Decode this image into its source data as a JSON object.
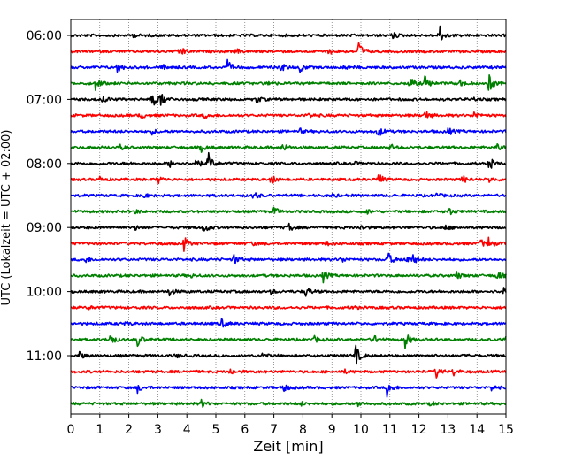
{
  "chart_data": {
    "type": "line",
    "title": "",
    "xlabel": "Zeit  [min]",
    "ylabel": "UTC (Lokalzeit = UTC + 02:00)",
    "xlim": [
      0,
      15
    ],
    "x_ticks": [
      0,
      1,
      2,
      3,
      4,
      5,
      6,
      7,
      8,
      9,
      10,
      11,
      12,
      13,
      14,
      15
    ],
    "y_tick_labels": [
      "06:00",
      "07:00",
      "08:00",
      "09:00",
      "10:00",
      "11:00"
    ],
    "x_grid": "dotted vertical lines at each minute",
    "trace_colors": [
      "#000000",
      "#ff0000",
      "#0000ff",
      "#008000"
    ],
    "series": [
      {
        "start": "06:00",
        "color": "#000000",
        "events": [
          {
            "t": 12.7,
            "amp": 1.4
          },
          {
            "t": 11.1,
            "amp": 0.4
          },
          {
            "t": 2.1,
            "amp": 0.3
          }
        ]
      },
      {
        "start": "06:15",
        "color": "#ff0000",
        "events": [
          {
            "t": 3.75,
            "amp": 0.9
          },
          {
            "t": 9.9,
            "amp": 1.6
          },
          {
            "t": 5.7,
            "amp": 0.3
          },
          {
            "t": 8.9,
            "amp": 0.4
          }
        ]
      },
      {
        "start": "06:30",
        "color": "#0000ff",
        "events": [
          {
            "t": 1.6,
            "amp": 0.7
          },
          {
            "t": 5.4,
            "amp": 0.9
          },
          {
            "t": 7.2,
            "amp": 0.8
          },
          {
            "t": 7.9,
            "amp": 0.6
          },
          {
            "t": 9.4,
            "amp": 0.3
          },
          {
            "t": 3.2,
            "amp": 0.4
          }
        ]
      },
      {
        "start": "06:45",
        "color": "#008000",
        "events": [
          {
            "t": 0.85,
            "amp": 0.9
          },
          {
            "t": 11.7,
            "amp": 0.9
          },
          {
            "t": 12.2,
            "amp": 1.1
          },
          {
            "t": 14.4,
            "amp": 1.3
          },
          {
            "t": 6.8,
            "amp": 0.3
          },
          {
            "t": 13.4,
            "amp": 0.5
          }
        ]
      },
      {
        "start": "07:00",
        "color": "#000000",
        "events": [
          {
            "t": 1.1,
            "amp": 0.6
          },
          {
            "t": 2.8,
            "amp": 1.2
          },
          {
            "t": 3.1,
            "amp": 1.3
          },
          {
            "t": 6.4,
            "amp": 0.5
          },
          {
            "t": 13.8,
            "amp": 0.3
          }
        ]
      },
      {
        "start": "07:15",
        "color": "#ff0000",
        "events": [
          {
            "t": 2.4,
            "amp": 0.4
          },
          {
            "t": 12.2,
            "amp": 0.7
          },
          {
            "t": 13.9,
            "amp": 0.5
          },
          {
            "t": 4.6,
            "amp": 0.3
          },
          {
            "t": 8.2,
            "amp": 0.3
          }
        ]
      },
      {
        "start": "07:30",
        "color": "#0000ff",
        "events": [
          {
            "t": 10.6,
            "amp": 0.8
          },
          {
            "t": 13.0,
            "amp": 0.5
          },
          {
            "t": 2.8,
            "amp": 0.3
          },
          {
            "t": 7.9,
            "amp": 0.3
          }
        ]
      },
      {
        "start": "07:45",
        "color": "#008000",
        "events": [
          {
            "t": 4.5,
            "amp": 0.5
          },
          {
            "t": 7.3,
            "amp": 0.6
          },
          {
            "t": 11.0,
            "amp": 0.5
          },
          {
            "t": 14.7,
            "amp": 0.4
          },
          {
            "t": 1.7,
            "amp": 0.3
          }
        ]
      },
      {
        "start": "08:00",
        "color": "#000000",
        "events": [
          {
            "t": 4.3,
            "amp": 0.8
          },
          {
            "t": 4.75,
            "amp": 1.3
          },
          {
            "t": 14.4,
            "amp": 1.0
          },
          {
            "t": 3.4,
            "amp": 0.5
          },
          {
            "t": 9.7,
            "amp": 0.3
          }
        ]
      },
      {
        "start": "08:15",
        "color": "#ff0000",
        "events": [
          {
            "t": 3.0,
            "amp": 0.5
          },
          {
            "t": 6.9,
            "amp": 0.7
          },
          {
            "t": 10.6,
            "amp": 0.9
          },
          {
            "t": 13.5,
            "amp": 0.6
          },
          {
            "t": 1.0,
            "amp": 0.3
          },
          {
            "t": 14.4,
            "amp": 0.4
          }
        ]
      },
      {
        "start": "08:30",
        "color": "#0000ff",
        "events": [
          {
            "t": 6.3,
            "amp": 0.6
          },
          {
            "t": 9.0,
            "amp": 0.3
          },
          {
            "t": 12.6,
            "amp": 0.3
          },
          {
            "t": 2.5,
            "amp": 0.3
          }
        ]
      },
      {
        "start": "08:45",
        "color": "#008000",
        "events": [
          {
            "t": 7.0,
            "amp": 0.6
          },
          {
            "t": 13.0,
            "amp": 0.7
          },
          {
            "t": 2.2,
            "amp": 0.3
          },
          {
            "t": 10.2,
            "amp": 0.3
          }
        ]
      },
      {
        "start": "09:00",
        "color": "#000000",
        "events": [
          {
            "t": 4.6,
            "amp": 0.7
          },
          {
            "t": 7.5,
            "amp": 0.6
          },
          {
            "t": 10.0,
            "amp": 0.4
          },
          {
            "t": 2.2,
            "amp": 0.3
          },
          {
            "t": 12.9,
            "amp": 0.4
          }
        ]
      },
      {
        "start": "09:15",
        "color": "#ff0000",
        "events": [
          {
            "t": 3.9,
            "amp": 1.0
          },
          {
            "t": 14.4,
            "amp": 0.8
          },
          {
            "t": 14.1,
            "amp": 0.6
          },
          {
            "t": 8.8,
            "amp": 0.3
          },
          {
            "t": 6.2,
            "amp": 0.3
          }
        ]
      },
      {
        "start": "09:30",
        "color": "#0000ff",
        "events": [
          {
            "t": 0.5,
            "amp": 0.4
          },
          {
            "t": 5.6,
            "amp": 0.8
          },
          {
            "t": 10.9,
            "amp": 1.2
          },
          {
            "t": 11.5,
            "amp": 0.8
          },
          {
            "t": 11.8,
            "amp": 0.6
          },
          {
            "t": 9.3,
            "amp": 0.4
          }
        ]
      },
      {
        "start": "09:45",
        "color": "#008000",
        "events": [
          {
            "t": 8.7,
            "amp": 0.8
          },
          {
            "t": 13.3,
            "amp": 0.5
          },
          {
            "t": 14.7,
            "amp": 0.6
          },
          {
            "t": 4.1,
            "amp": 0.3
          }
        ]
      },
      {
        "start": "10:00",
        "color": "#000000",
        "events": [
          {
            "t": 3.4,
            "amp": 0.5
          },
          {
            "t": 8.1,
            "amp": 0.8
          },
          {
            "t": 14.9,
            "amp": 1.4
          },
          {
            "t": 6.9,
            "amp": 0.3
          }
        ]
      },
      {
        "start": "10:15",
        "color": "#ff0000",
        "events": [
          {
            "t": 0.6,
            "amp": 0.2
          },
          {
            "t": 9.7,
            "amp": 0.2
          }
        ]
      },
      {
        "start": "10:30",
        "color": "#0000ff",
        "events": [
          {
            "t": 5.2,
            "amp": 0.6
          },
          {
            "t": 1.9,
            "amp": 0.2
          }
        ]
      },
      {
        "start": "10:45",
        "color": "#008000",
        "events": [
          {
            "t": 1.35,
            "amp": 0.9
          },
          {
            "t": 2.3,
            "amp": 0.9
          },
          {
            "t": 10.4,
            "amp": 0.8
          },
          {
            "t": 11.5,
            "amp": 1.4
          },
          {
            "t": 14.9,
            "amp": 0.8
          },
          {
            "t": 8.4,
            "amp": 0.4
          }
        ]
      },
      {
        "start": "11:00",
        "color": "#000000",
        "events": [
          {
            "t": 0.3,
            "amp": 0.5
          },
          {
            "t": 9.8,
            "amp": 1.6
          },
          {
            "t": 6.6,
            "amp": 0.3
          },
          {
            "t": 3.6,
            "amp": 0.3
          }
        ]
      },
      {
        "start": "11:15",
        "color": "#ff0000",
        "events": [
          {
            "t": 12.6,
            "amp": 0.8
          },
          {
            "t": 13.2,
            "amp": 0.5
          },
          {
            "t": 5.5,
            "amp": 0.4
          },
          {
            "t": 9.4,
            "amp": 0.3
          }
        ]
      },
      {
        "start": "11:30",
        "color": "#0000ff",
        "events": [
          {
            "t": 2.3,
            "amp": 0.6
          },
          {
            "t": 7.3,
            "amp": 0.8
          },
          {
            "t": 10.9,
            "amp": 1.2
          },
          {
            "t": 14.5,
            "amp": 0.4
          }
        ]
      },
      {
        "start": "11:45",
        "color": "#008000",
        "events": [
          {
            "t": 4.5,
            "amp": 0.5
          },
          {
            "t": 9.9,
            "amp": 0.4
          },
          {
            "t": 7.9,
            "amp": 0.3
          },
          {
            "t": 12.4,
            "amp": 0.3
          }
        ]
      }
    ]
  }
}
